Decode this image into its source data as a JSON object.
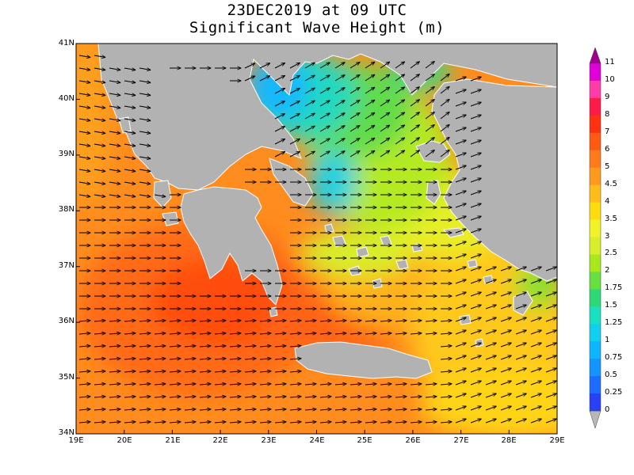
{
  "title_line1": "23DEC2019 at 09 UTC",
  "title_line2": "Significant Wave Height (m)",
  "lat_labels": [
    "41N",
    "40N",
    "39N",
    "38N",
    "37N",
    "36N",
    "35N",
    "34N"
  ],
  "lon_labels": [
    "19E",
    "20E",
    "21E",
    "22E",
    "23E",
    "24E",
    "25E",
    "26E",
    "27E",
    "28E",
    "29E"
  ],
  "colorbar": {
    "labels": [
      "11",
      "10",
      "9",
      "8",
      "7",
      "6",
      "5",
      "4.5",
      "4",
      "3.5",
      "3",
      "2.5",
      "2",
      "1.75",
      "1.5",
      "1.25",
      "1",
      "0.75",
      "0.5",
      "0.25",
      "0"
    ],
    "colors": [
      "#e000d8",
      "#ff3ca8",
      "#ff1a4a",
      "#ff3210",
      "#ff5a14",
      "#ff7a1a",
      "#ff9a1e",
      "#ffbc1a",
      "#ffdc0e",
      "#f2f22a",
      "#d8ee2c",
      "#a8e81c",
      "#66e040",
      "#2ed878",
      "#18e0c0",
      "#12cfef",
      "#0fb4ff",
      "#1494ff",
      "#1e6cff",
      "#2a40f4"
    ],
    "over_color": "#a0008c",
    "under_color": "#b8b8b8"
  },
  "colors": {
    "land": "#b2b2b2",
    "coast": "#ffffff"
  }
}
